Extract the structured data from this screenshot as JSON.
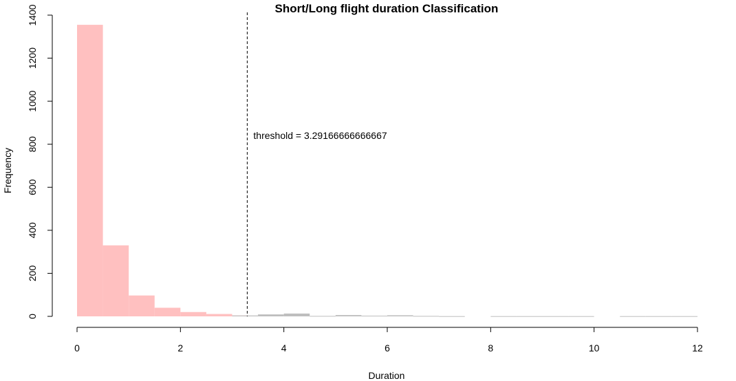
{
  "chart_data": {
    "type": "bar",
    "title": "Short/Long flight duration Classification",
    "xlabel": "Duration",
    "ylabel": "Frequency",
    "xlim": [
      0,
      12
    ],
    "ylim": [
      0,
      1400
    ],
    "x_ticks": [
      "0",
      "2",
      "4",
      "6",
      "8",
      "10",
      "12"
    ],
    "y_ticks": [
      "0",
      "200",
      "400",
      "600",
      "800",
      "1000",
      "1200",
      "1400"
    ],
    "bin_width": 0.5,
    "threshold": {
      "value": 3.29166666666667,
      "label": "threshold = 3.29166666666667",
      "line_style": "dashed"
    },
    "series": [
      {
        "color": "#ffc0c0",
        "bins": [
          {
            "x0": 0.0,
            "x1": 0.5,
            "count": 1355
          },
          {
            "x0": 0.5,
            "x1": 1.0,
            "count": 330
          },
          {
            "x0": 1.0,
            "x1": 1.5,
            "count": 97
          },
          {
            "x0": 1.5,
            "x1": 2.0,
            "count": 40
          },
          {
            "x0": 2.0,
            "x1": 2.5,
            "count": 20
          },
          {
            "x0": 2.5,
            "x1": 3.0,
            "count": 11
          },
          {
            "x0": 3.0,
            "x1": 3.29166666666667,
            "count": 4
          }
        ]
      },
      {
        "color": "#bebebe",
        "bins": [
          {
            "x0": 3.0,
            "x1": 3.5,
            "count": 4
          },
          {
            "x0": 3.5,
            "x1": 4.0,
            "count": 9
          },
          {
            "x0": 4.0,
            "x1": 4.5,
            "count": 13
          },
          {
            "x0": 4.5,
            "x1": 5.0,
            "count": 2
          },
          {
            "x0": 5.0,
            "x1": 5.5,
            "count": 6
          },
          {
            "x0": 5.5,
            "x1": 6.0,
            "count": 3
          },
          {
            "x0": 6.0,
            "x1": 6.5,
            "count": 5
          },
          {
            "x0": 6.5,
            "x1": 7.0,
            "count": 2
          },
          {
            "x0": 7.0,
            "x1": 7.5,
            "count": 1
          },
          {
            "x0": 8.0,
            "x1": 8.5,
            "count": 1
          },
          {
            "x0": 8.5,
            "x1": 9.0,
            "count": 1
          },
          {
            "x0": 9.0,
            "x1": 9.5,
            "count": 1
          },
          {
            "x0": 9.5,
            "x1": 10.0,
            "count": 1
          },
          {
            "x0": 10.5,
            "x1": 11.0,
            "count": 1
          },
          {
            "x0": 11.0,
            "x1": 11.5,
            "count": 1
          },
          {
            "x0": 11.5,
            "x1": 12.0,
            "count": 1
          }
        ]
      }
    ]
  }
}
